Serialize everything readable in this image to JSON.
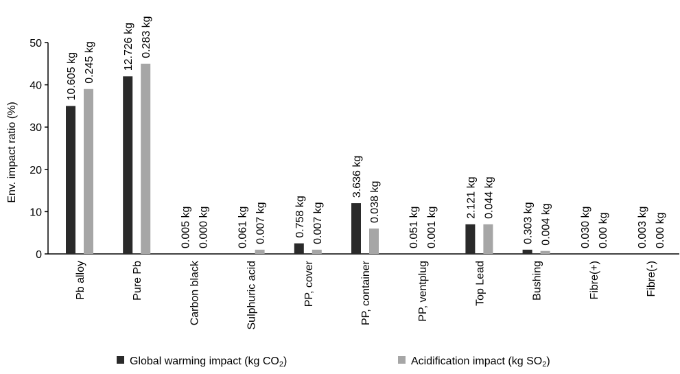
{
  "chart_data": {
    "type": "bar",
    "title": "",
    "xlabel": "",
    "ylabel": "Env. impact ratio (%)",
    "ylim": [
      0,
      50
    ],
    "yticks": [
      0,
      10,
      20,
      30,
      40,
      50
    ],
    "grid": false,
    "legend_position": "bottom",
    "categories": [
      "Pb alloy",
      "Pure Pb",
      "Carbon black",
      "Sulphuric acid",
      "PP, cover",
      "PP, container",
      "PP, ventplug",
      "Top Lead",
      "Bushing",
      "Fibre(+)",
      "Fibre(-)"
    ],
    "series": [
      {
        "name": "Global warming impact (kg CO2)",
        "legend_main": "Global warming impact (kg CO",
        "legend_sub": "2",
        "legend_end": ")",
        "color": "#2a2a2a",
        "values": [
          35,
          42,
          0,
          0,
          2.5,
          12,
          0,
          7,
          1,
          0,
          0
        ],
        "labels": [
          "10.605 kg",
          "12.726 kg",
          "0.005 kg",
          "0.061 kg",
          "0.758 kg",
          "3.636 kg",
          "0.051 kg",
          "2.121 kg",
          "0.303 kg",
          "0.030 kg",
          "0.003 kg"
        ]
      },
      {
        "name": "Acidification impact (kg SO2)",
        "legend_main": "Acidification impact (kg SO",
        "legend_sub": "2",
        "legend_end": ")",
        "color": "#a6a6a6",
        "values": [
          39,
          45,
          0,
          1,
          1,
          6,
          0,
          7,
          0.7,
          0,
          0
        ],
        "labels": [
          "0.245 kg",
          "0.283 kg",
          "0.000 kg",
          "0.007 kg",
          "0.007 kg",
          "0.038 kg",
          "0.001 kg",
          "0.044 kg",
          "0.004 kg",
          "0.00 kg",
          "0.00 kg"
        ]
      }
    ]
  }
}
